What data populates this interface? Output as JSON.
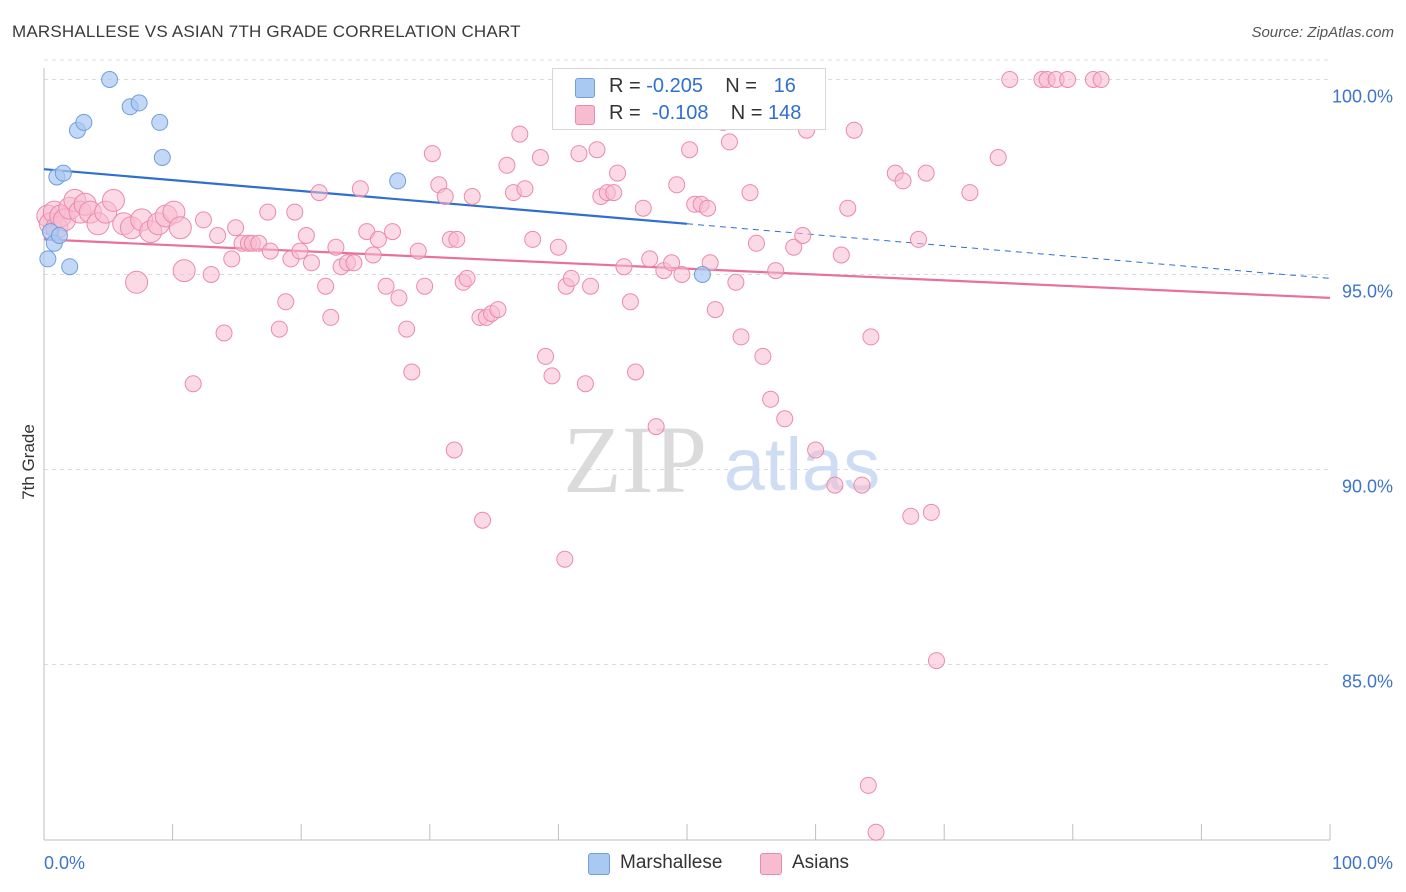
{
  "title": "MARSHALLESE VS ASIAN 7TH GRADE CORRELATION CHART",
  "source": "Source: ZipAtlas.com",
  "watermark": {
    "zip": "ZIP",
    "atlas": "atlas"
  },
  "colors": {
    "blue_fill": "#a9c8f2",
    "blue_stroke": "#6f9fde",
    "blue_line": "#2f6fd0",
    "pink_fill": "#f7bccf",
    "pink_stroke": "#ec8aab",
    "pink_line": "#e8719b",
    "axis_text": "#3f74c9",
    "grid": "#dcdcdc"
  },
  "legend": {
    "rows": [
      {
        "r_label": "R = ",
        "r_value": "-0.205",
        "n_label": "N = ",
        "n_value": "16",
        "series": "Marshallese"
      },
      {
        "r_label": "R = ",
        "r_value": "-0.108",
        "n_label": "N = ",
        "n_value": "148",
        "series": "Asians"
      }
    ]
  },
  "chart_data": {
    "type": "scatter",
    "title": "MARSHALLESE VS ASIAN 7TH GRADE CORRELATION CHART",
    "xlabel": "",
    "ylabel": "7th Grade",
    "xlim": [
      0,
      100
    ],
    "ylim": [
      80.5,
      100.5
    ],
    "x_tick_labels": [
      "0.0%",
      "100.0%"
    ],
    "y_ticks": [
      100,
      95,
      90,
      85
    ],
    "y_tick_labels": [
      "100.0%",
      "95.0%",
      "90.0%",
      "85.0%"
    ],
    "grid": true,
    "legend_position": "bottom",
    "series": [
      {
        "name": "Marshallese",
        "points": [
          [
            0.3,
            95.4
          ],
          [
            0.5,
            96.1
          ],
          [
            0.8,
            95.8
          ],
          [
            1.0,
            97.5
          ],
          [
            1.2,
            96.0
          ],
          [
            1.5,
            97.6
          ],
          [
            2.0,
            95.2
          ],
          [
            2.6,
            98.7
          ],
          [
            3.1,
            98.9
          ],
          [
            5.1,
            100.0
          ],
          [
            6.7,
            99.3
          ],
          [
            7.4,
            99.4
          ],
          [
            9.0,
            98.9
          ],
          [
            9.2,
            98.0
          ],
          [
            27.5,
            97.4
          ],
          [
            51.2,
            95.0
          ]
        ],
        "trend": {
          "x": [
            0,
            50
          ],
          "y": [
            97.7,
            96.3
          ],
          "dashed_extension": {
            "x": [
              50,
              100
            ],
            "y": [
              96.3,
              94.9
            ]
          }
        }
      },
      {
        "name": "Asians",
        "points": [
          [
            0.3,
            96.5
          ],
          [
            0.5,
            96.3
          ],
          [
            0.8,
            96.6
          ],
          [
            1.0,
            96.2
          ],
          [
            1.3,
            96.5
          ],
          [
            1.6,
            96.4
          ],
          [
            2.0,
            96.7
          ],
          [
            2.4,
            96.9
          ],
          [
            2.8,
            96.6
          ],
          [
            3.2,
            96.8
          ],
          [
            3.6,
            96.6
          ],
          [
            4.2,
            96.3
          ],
          [
            4.8,
            96.6
          ],
          [
            5.4,
            96.9
          ],
          [
            6.2,
            96.3
          ],
          [
            6.8,
            96.2
          ],
          [
            7.2,
            94.8
          ],
          [
            7.6,
            96.4
          ],
          [
            8.3,
            96.1
          ],
          [
            8.9,
            96.3
          ],
          [
            9.5,
            96.5
          ],
          [
            10.1,
            96.6
          ],
          [
            10.6,
            96.2
          ],
          [
            10.9,
            95.1
          ],
          [
            11.6,
            92.2
          ],
          [
            12.4,
            96.4
          ],
          [
            13.0,
            95.0
          ],
          [
            13.5,
            96.0
          ],
          [
            14.0,
            93.5
          ],
          [
            14.6,
            95.4
          ],
          [
            14.9,
            96.2
          ],
          [
            15.4,
            95.8
          ],
          [
            15.9,
            95.8
          ],
          [
            16.2,
            95.8
          ],
          [
            16.7,
            95.8
          ],
          [
            17.4,
            96.6
          ],
          [
            17.6,
            95.6
          ],
          [
            18.3,
            93.6
          ],
          [
            18.8,
            94.3
          ],
          [
            19.2,
            95.4
          ],
          [
            19.5,
            96.6
          ],
          [
            19.9,
            95.6
          ],
          [
            20.4,
            96.0
          ],
          [
            20.8,
            95.3
          ],
          [
            21.4,
            97.1
          ],
          [
            21.9,
            94.7
          ],
          [
            22.3,
            93.9
          ],
          [
            22.7,
            95.7
          ],
          [
            23.1,
            95.2
          ],
          [
            23.6,
            95.3
          ],
          [
            24.1,
            95.3
          ],
          [
            24.6,
            97.2
          ],
          [
            25.1,
            96.1
          ],
          [
            25.6,
            95.5
          ],
          [
            26.0,
            95.9
          ],
          [
            26.6,
            94.7
          ],
          [
            27.1,
            96.1
          ],
          [
            27.6,
            94.4
          ],
          [
            28.2,
            93.6
          ],
          [
            28.6,
            92.5
          ],
          [
            29.1,
            95.6
          ],
          [
            29.6,
            94.7
          ],
          [
            30.2,
            98.1
          ],
          [
            30.7,
            97.3
          ],
          [
            31.2,
            97.0
          ],
          [
            31.6,
            95.9
          ],
          [
            32.1,
            95.9
          ],
          [
            32.6,
            94.8
          ],
          [
            32.9,
            94.9
          ],
          [
            33.3,
            97.0
          ],
          [
            33.9,
            93.9
          ],
          [
            34.4,
            93.9
          ],
          [
            34.8,
            94.0
          ],
          [
            35.3,
            94.1
          ],
          [
            36.0,
            97.8
          ],
          [
            36.5,
            97.1
          ],
          [
            37.0,
            98.6
          ],
          [
            37.4,
            97.2
          ],
          [
            38.0,
            95.9
          ],
          [
            38.6,
            98.0
          ],
          [
            39.0,
            92.9
          ],
          [
            39.5,
            92.4
          ],
          [
            40.0,
            95.7
          ],
          [
            40.6,
            94.7
          ],
          [
            41.0,
            94.9
          ],
          [
            41.6,
            98.1
          ],
          [
            42.1,
            92.2
          ],
          [
            42.5,
            94.7
          ],
          [
            43.0,
            98.2
          ],
          [
            43.3,
            97.0
          ],
          [
            43.8,
            97.1
          ],
          [
            44.3,
            97.1
          ],
          [
            44.6,
            97.6
          ],
          [
            45.1,
            95.2
          ],
          [
            45.6,
            94.3
          ],
          [
            46.0,
            92.5
          ],
          [
            46.6,
            96.7
          ],
          [
            47.1,
            95.4
          ],
          [
            47.6,
            91.1
          ],
          [
            48.2,
            95.1
          ],
          [
            48.8,
            95.3
          ],
          [
            49.2,
            97.3
          ],
          [
            49.6,
            95.0
          ],
          [
            50.2,
            98.2
          ],
          [
            50.6,
            96.8
          ],
          [
            51.1,
            96.8
          ],
          [
            51.6,
            96.7
          ],
          [
            52.2,
            94.1
          ],
          [
            52.8,
            98.9
          ],
          [
            53.3,
            98.4
          ],
          [
            53.8,
            94.8
          ],
          [
            54.2,
            93.4
          ],
          [
            54.9,
            97.1
          ],
          [
            55.4,
            95.8
          ],
          [
            55.9,
            92.9
          ],
          [
            56.5,
            91.8
          ],
          [
            56.9,
            95.1
          ],
          [
            57.6,
            91.3
          ],
          [
            58.3,
            95.7
          ],
          [
            59.0,
            96.0
          ],
          [
            59.3,
            98.7
          ],
          [
            60.0,
            90.5
          ],
          [
            61.5,
            89.6
          ],
          [
            62.0,
            95.5
          ],
          [
            62.5,
            96.7
          ],
          [
            63.0,
            98.7
          ],
          [
            63.6,
            89.6
          ],
          [
            64.3,
            93.4
          ],
          [
            66.2,
            97.6
          ],
          [
            66.8,
            97.4
          ],
          [
            67.4,
            88.8
          ],
          [
            68.0,
            95.9
          ],
          [
            68.6,
            97.6
          ],
          [
            69.0,
            88.9
          ],
          [
            69.4,
            85.1
          ],
          [
            72.0,
            97.1
          ],
          [
            74.2,
            98.0
          ],
          [
            75.1,
            100.0
          ],
          [
            77.6,
            100.0
          ],
          [
            78.0,
            100.0
          ],
          [
            78.7,
            100.0
          ],
          [
            79.6,
            100.0
          ],
          [
            81.6,
            100.0
          ],
          [
            82.2,
            100.0
          ],
          [
            64.1,
            81.9
          ],
          [
            64.7,
            80.7
          ],
          [
            31.9,
            90.5
          ],
          [
            34.1,
            88.7
          ],
          [
            40.5,
            87.7
          ],
          [
            51.8,
            95.3
          ]
        ],
        "trend": {
          "x": [
            0,
            100
          ],
          "y": [
            95.9,
            94.4
          ]
        }
      }
    ]
  },
  "bottom_legend": [
    {
      "label": "Marshallese",
      "series": "Marshallese"
    },
    {
      "label": "Asians",
      "series": "Asians"
    }
  ]
}
